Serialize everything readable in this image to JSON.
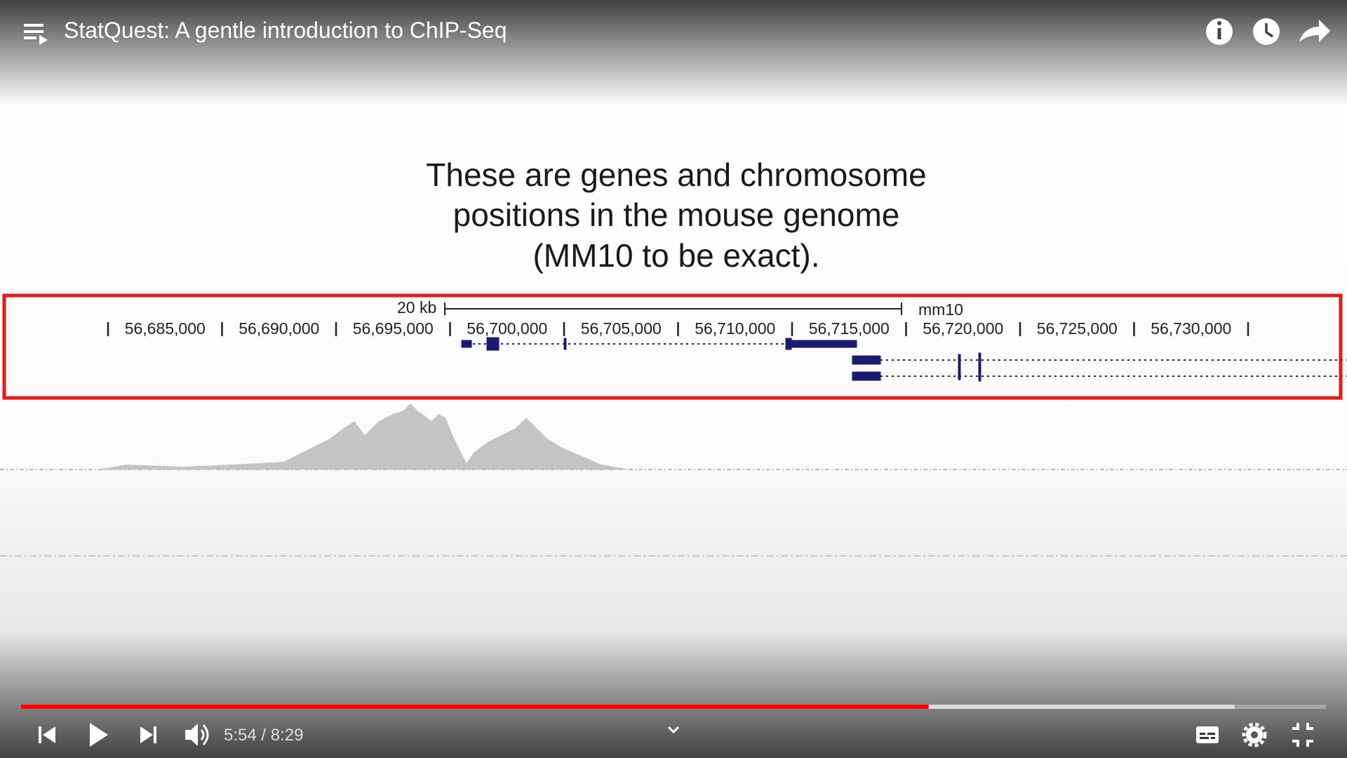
{
  "header": {
    "title": "StatQuest: A gentle introduction to ChIP-Seq"
  },
  "slide": {
    "caption_lines": [
      "These are genes and chromosome",
      "positions in the mouse genome",
      "(MM10 to be exact)."
    ],
    "browser": {
      "scale_label": "20 kb",
      "assembly": "mm10",
      "positions": [
        "56,685,000",
        "56,690,000",
        "56,695,000",
        "56,700,000",
        "56,705,000",
        "56,710,000",
        "56,715,000",
        "56,720,000",
        "56,725,000",
        "56,730,000"
      ]
    }
  },
  "player": {
    "current_time": "5:54",
    "separator": "/",
    "duration": "8:29",
    "buffered_fraction": 0.93
  }
}
